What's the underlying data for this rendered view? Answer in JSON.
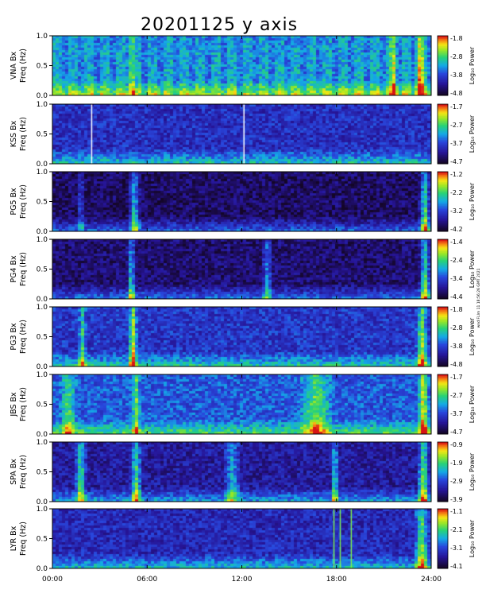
{
  "chart_data": {
    "type": "heatmap",
    "title": "20201125 y axis",
    "side_note": "wnd FLIm 11 18:56:26 GMT 2021",
    "x_ticks": [
      "00:00",
      "06:00",
      "12:00",
      "18:00",
      "24:00"
    ],
    "x_range_hours": [
      0,
      24
    ],
    "y_ticks": [
      "0.0",
      "0.5",
      "1.0"
    ],
    "y_range_hz": [
      0,
      1.0
    ],
    "y_unit": "Freq (Hz)",
    "colorbar_label": "Log₁₀ Power",
    "panels": [
      {
        "station": "VNA Bx",
        "cb_ticks": [
          "-1.8",
          "-2.8",
          "-3.8",
          "-4.8"
        ],
        "cb_range": [
          -4.8,
          -1.8
        ],
        "base": 0.42,
        "striped": true,
        "features": [
          {
            "x": 5.0,
            "w": 0.3,
            "s": 0.3
          },
          {
            "x": 21.6,
            "w": 0.3,
            "s": 0.4
          },
          {
            "x": 23.3,
            "w": 0.4,
            "s": 0.5
          }
        ],
        "white_lines": []
      },
      {
        "station": "KSS Bx",
        "cb_ticks": [
          "-1.7",
          "-2.7",
          "-3.7",
          "-4.7"
        ],
        "cb_range": [
          -4.7,
          -1.7
        ],
        "base": 0.28,
        "striped": false,
        "features": [],
        "white_lines": [
          2.45,
          12.1
        ]
      },
      {
        "station": "PG5 Bx",
        "cb_ticks": [
          "-1.2",
          "-2.2",
          "-3.2",
          "-4.2"
        ],
        "cb_range": [
          -4.2,
          -1.2
        ],
        "base": 0.1,
        "striped": false,
        "features": [
          {
            "x": 5.2,
            "w": 0.4,
            "s": 0.6
          },
          {
            "x": 1.8,
            "w": 0.3,
            "s": 0.3
          },
          {
            "x": 23.6,
            "w": 0.4,
            "s": 0.7
          }
        ],
        "white_lines": []
      },
      {
        "station": "PG4 Bx",
        "cb_ticks": [
          "-1.4",
          "-2.4",
          "-3.4",
          "-4.4"
        ],
        "cb_range": [
          -4.4,
          -1.4
        ],
        "base": 0.12,
        "striped": false,
        "features": [
          {
            "x": 5.0,
            "w": 0.3,
            "s": 0.6
          },
          {
            "x": 13.6,
            "w": 0.4,
            "s": 0.4
          },
          {
            "x": 23.6,
            "w": 0.4,
            "s": 0.7
          }
        ],
        "white_lines": []
      },
      {
        "station": "PG3 Bx",
        "cb_ticks": [
          "-1.8",
          "-2.8",
          "-3.8",
          "-4.8"
        ],
        "cb_range": [
          -4.8,
          -1.8
        ],
        "base": 0.3,
        "striped": false,
        "features": [
          {
            "x": 5.1,
            "w": 0.3,
            "s": 0.7
          },
          {
            "x": 1.9,
            "w": 0.3,
            "s": 0.4
          },
          {
            "x": 23.4,
            "w": 0.4,
            "s": 0.6
          }
        ],
        "white_lines": []
      },
      {
        "station": "JBS Bx",
        "cb_ticks": [
          "-1.7",
          "-2.7",
          "-3.7",
          "-4.7"
        ],
        "cb_range": [
          -4.7,
          -1.7
        ],
        "base": 0.38,
        "striped": false,
        "features": [
          {
            "x": 5.3,
            "w": 0.3,
            "s": 0.5
          },
          {
            "x": 1.0,
            "w": 0.6,
            "s": 0.4
          },
          {
            "x": 16.7,
            "w": 1.2,
            "s": 0.45
          },
          {
            "x": 23.5,
            "w": 0.4,
            "s": 0.6
          }
        ],
        "white_lines": []
      },
      {
        "station": "SPA Bx",
        "cb_ticks": [
          "-0.9",
          "-1.9",
          "-2.9",
          "-3.9"
        ],
        "cb_range": [
          -3.9,
          -0.9
        ],
        "base": 0.2,
        "striped": false,
        "features": [
          {
            "x": 1.8,
            "w": 0.4,
            "s": 0.6
          },
          {
            "x": 5.3,
            "w": 0.4,
            "s": 0.6
          },
          {
            "x": 11.4,
            "w": 0.6,
            "s": 0.4
          },
          {
            "x": 17.9,
            "w": 0.3,
            "s": 0.5
          },
          {
            "x": 23.5,
            "w": 0.4,
            "s": 0.7
          }
        ],
        "white_lines": []
      },
      {
        "station": "LYR Bx",
        "cb_ticks": [
          "-1.1",
          "-2.1",
          "-3.1",
          "-4.1"
        ],
        "cb_range": [
          -4.1,
          -1.1
        ],
        "base": 0.26,
        "striped": false,
        "features": [
          {
            "x": 23.4,
            "w": 0.5,
            "s": 0.6
          }
        ],
        "white_lines": [],
        "green_lines": [
          17.8,
          18.2,
          18.9
        ]
      }
    ]
  }
}
